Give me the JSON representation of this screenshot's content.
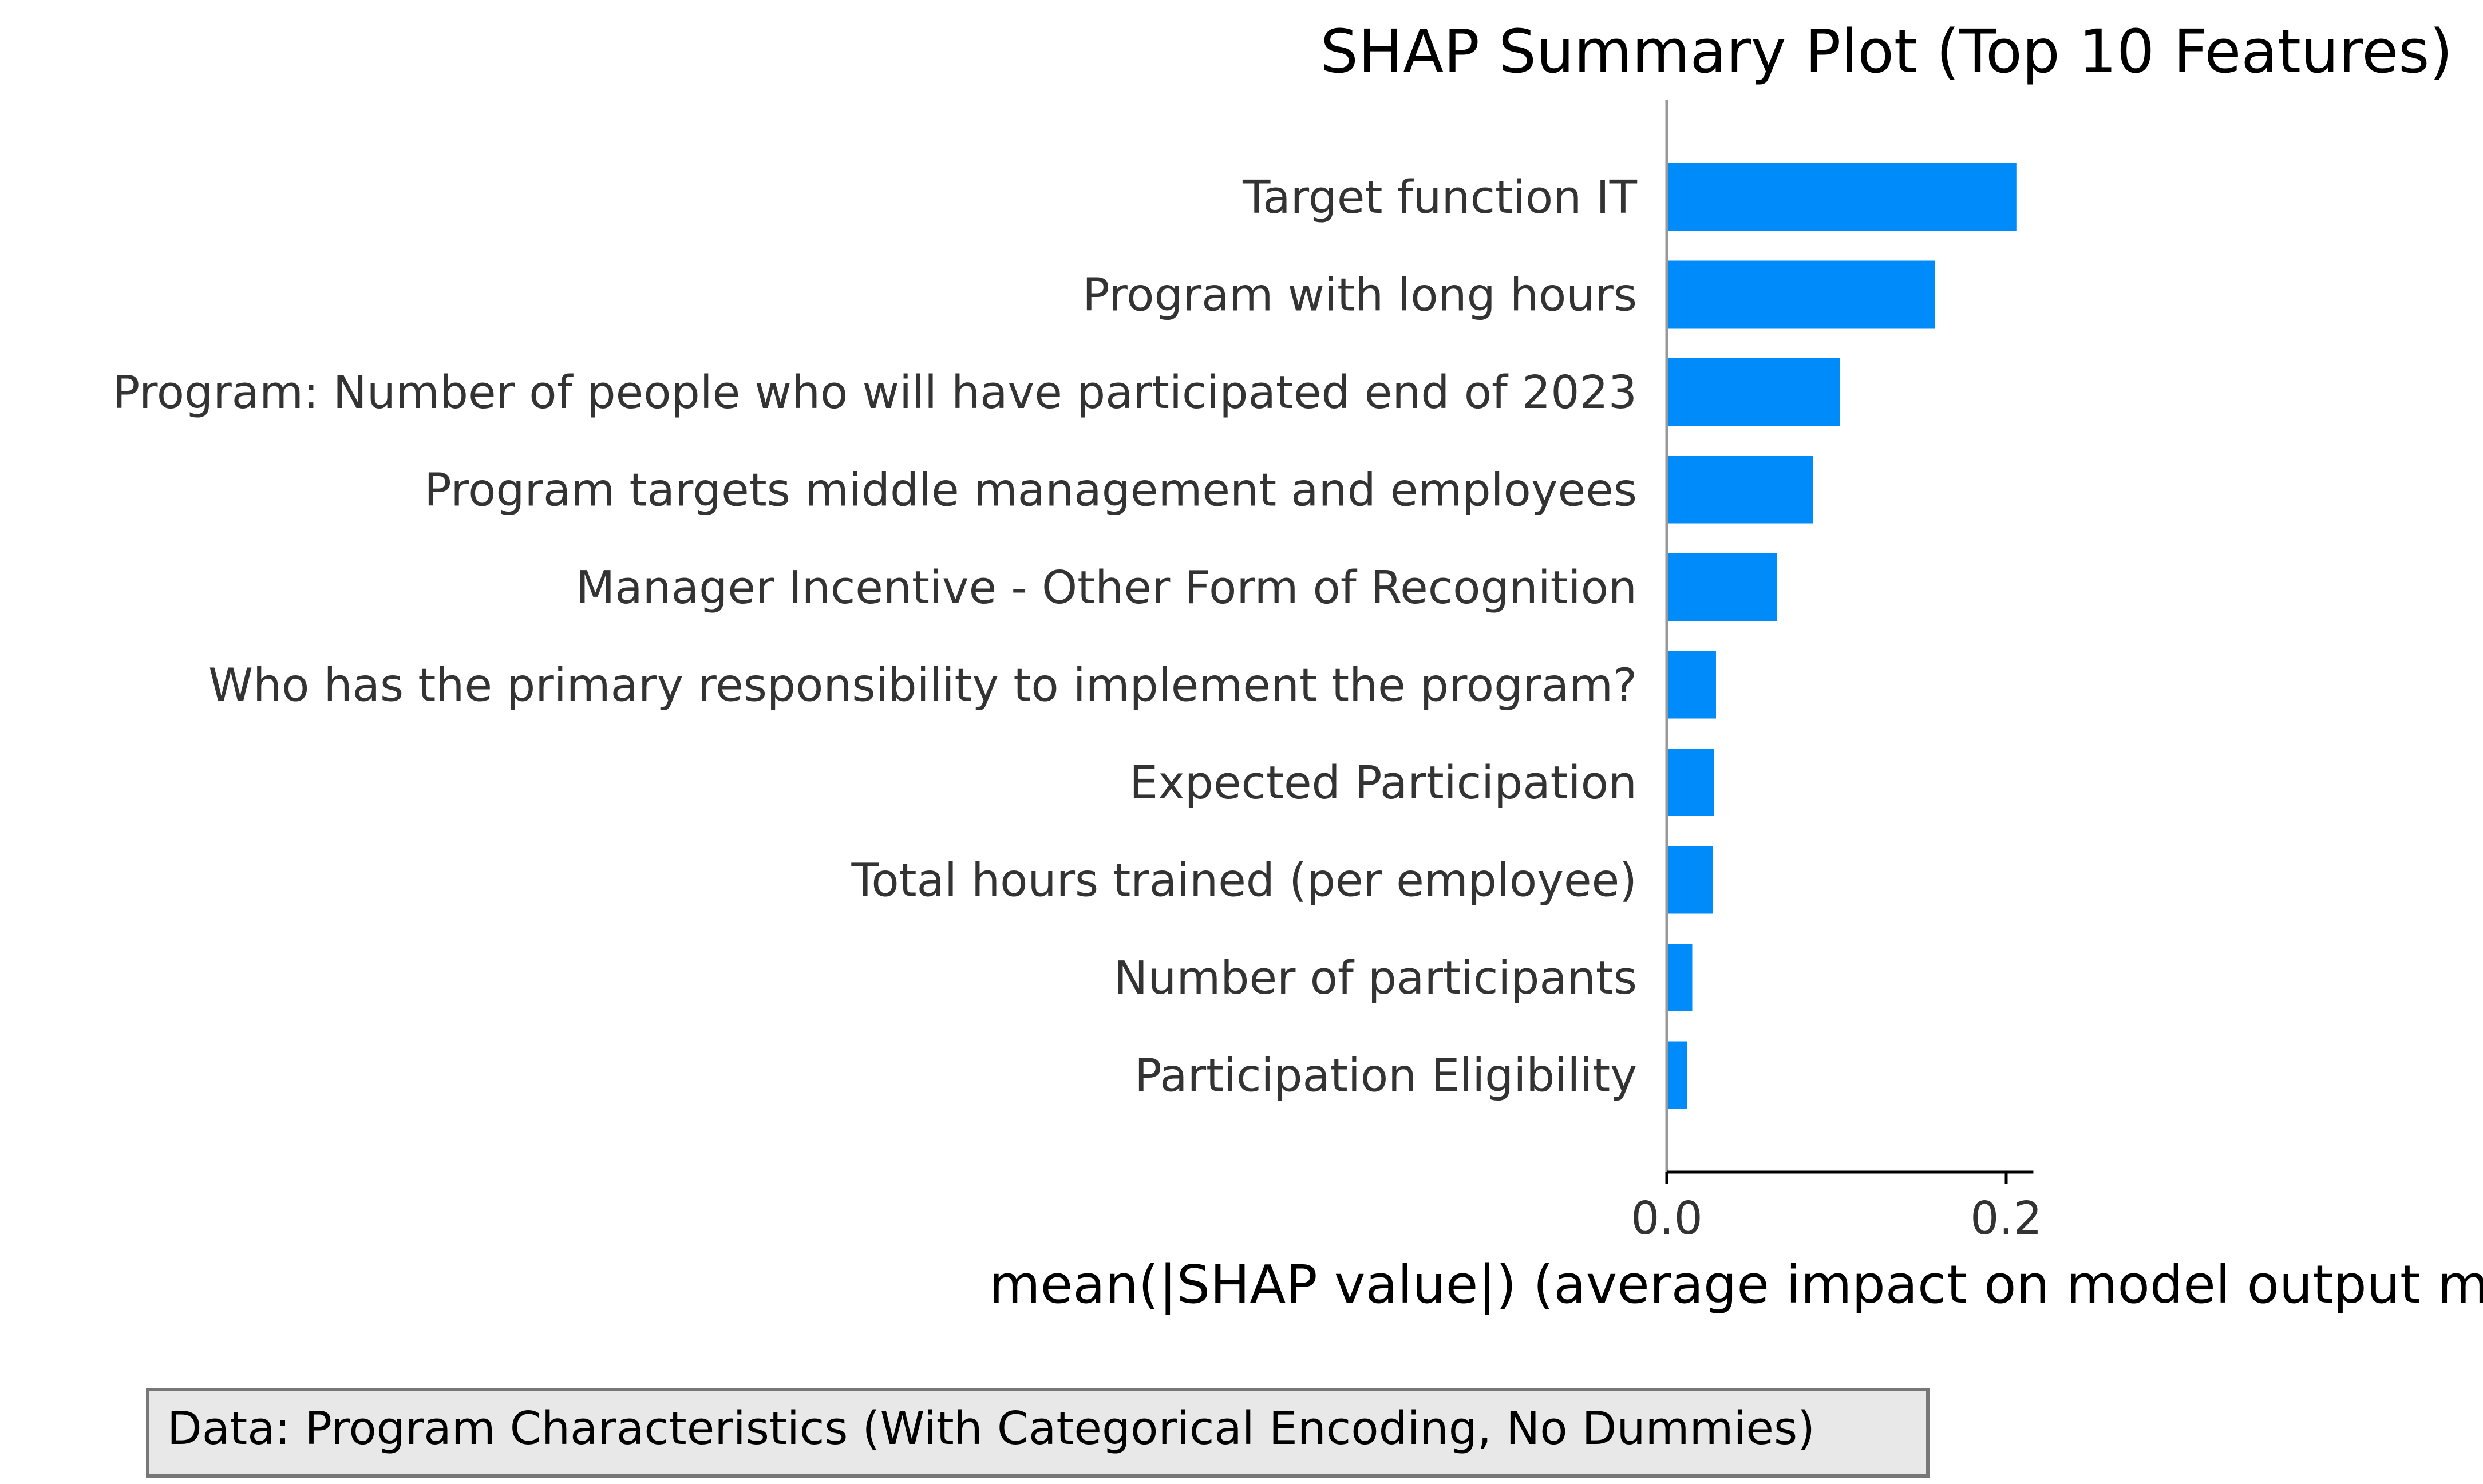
{
  "chart_data": {
    "type": "bar",
    "orientation": "horizontal",
    "title": "SHAP Summary Plot (Top 10 Features)",
    "xlabel": "mean(|SHAP value|) (average impact on model output magnitude)",
    "ylabel": "",
    "categories": [
      "Target function IT",
      "Program with long hours",
      "Program: Number of people who will have participated end of 2023",
      "Program targets middle management and employees",
      "Manager Incentive - Other Form of Recognition",
      "Who has the primary responsibility to implement the program?",
      "Expected Participation",
      "Total hours trained (per employee)",
      "Number of participants",
      "Participation Eligibility"
    ],
    "values": [
      0.206,
      0.158,
      0.102,
      0.086,
      0.065,
      0.029,
      0.028,
      0.027,
      0.015,
      0.012
    ],
    "xlim": [
      0,
      0.216
    ],
    "xticks": [
      0.0,
      0.2
    ],
    "xtick_labels": [
      "0.0",
      "0.2"
    ],
    "bar_color": "#008bfb",
    "grid": false,
    "legend": "none"
  },
  "note": {
    "text": "Data: Program Characteristics (With Categorical Encoding, No Dummies)"
  }
}
